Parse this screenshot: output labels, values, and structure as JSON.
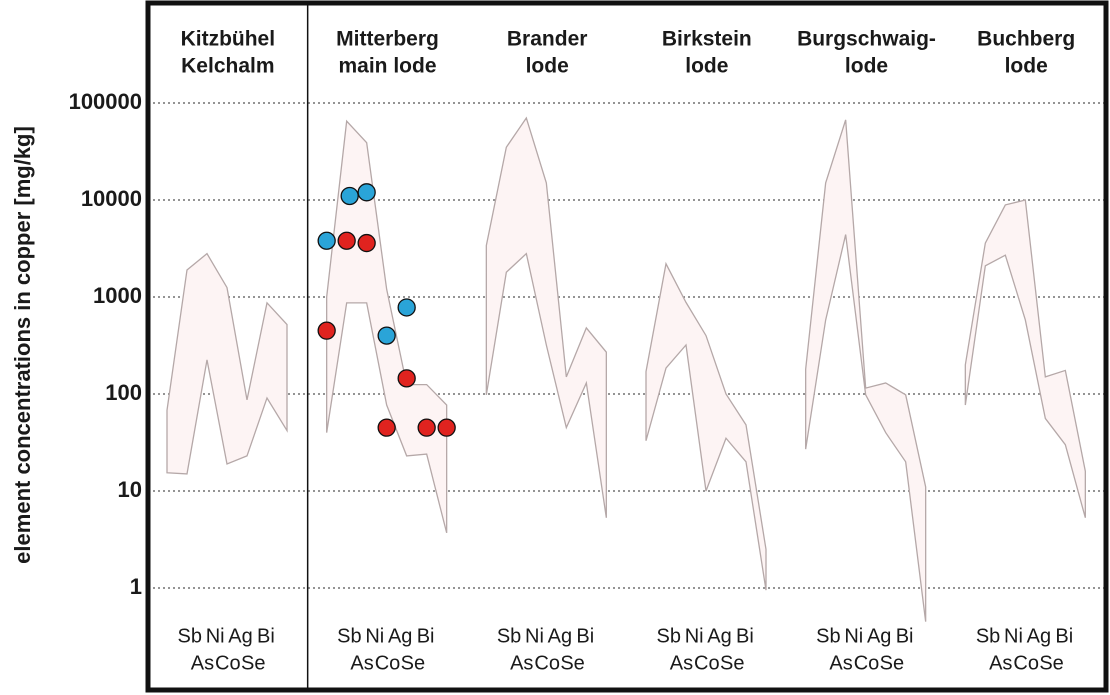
{
  "chart_data": {
    "type": "band",
    "y_label": "element concentrations in copper [mg/kg]",
    "log_scale": true,
    "grid": true,
    "ylim": [
      0.1,
      1000000
    ],
    "yticks": [
      1,
      10,
      100,
      1000,
      10000,
      100000
    ],
    "categories": [
      "Sb",
      "As",
      "Ni",
      "Co",
      "Ag",
      "Se",
      "Bi"
    ],
    "band_fill": "#fdf4f4",
    "band_stroke": "#b5a8a8",
    "panels": [
      {
        "title": [
          "Kitzbühel",
          "Kelchalm"
        ],
        "max": [
          68,
          1900,
          2800,
          1250,
          87,
          870,
          520
        ],
        "min": [
          15.4,
          15,
          225,
          19,
          23,
          91,
          42
        ]
      },
      {
        "title": [
          "Mitterberg",
          "main lode"
        ],
        "max": [
          1000,
          65000,
          39000,
          1200,
          125,
          125,
          77
        ],
        "min": [
          40,
          870,
          870,
          77,
          23,
          24,
          3.7
        ],
        "series": [
          {
            "color": "#2aa4d8",
            "values": [
              3800,
              11000,
              12000,
              400,
              780,
              null,
              null
            ]
          },
          {
            "color": "#e0231f",
            "values": [
              450,
              3800,
              3600,
              45,
              145,
              45,
              45
            ]
          }
        ]
      },
      {
        "title": [
          "Brander",
          "lode"
        ],
        "max": [
          3400,
          35000,
          70000,
          15000,
          150,
          480,
          270
        ],
        "min": [
          98,
          1800,
          2800,
          320,
          45,
          130,
          5.3
        ]
      },
      {
        "title": [
          "Birkstein",
          "lode"
        ],
        "max": [
          170,
          2200,
          880,
          400,
          100,
          48,
          2.5
        ],
        "min": [
          33,
          185,
          320,
          10,
          35,
          20,
          0.95
        ]
      },
      {
        "title": [
          "Burgschwaig-",
          "lode"
        ],
        "max": [
          180,
          15000,
          67000,
          115,
          130,
          98,
          11
        ],
        "min": [
          27,
          580,
          4400,
          98,
          40,
          20,
          0.45
        ]
      },
      {
        "title": [
          "Buchberg",
          "lode"
        ],
        "max": [
          200,
          3600,
          8900,
          10000,
          150,
          175,
          16
        ],
        "min": [
          77,
          2100,
          2700,
          580,
          56,
          30,
          5.3
        ]
      }
    ]
  }
}
